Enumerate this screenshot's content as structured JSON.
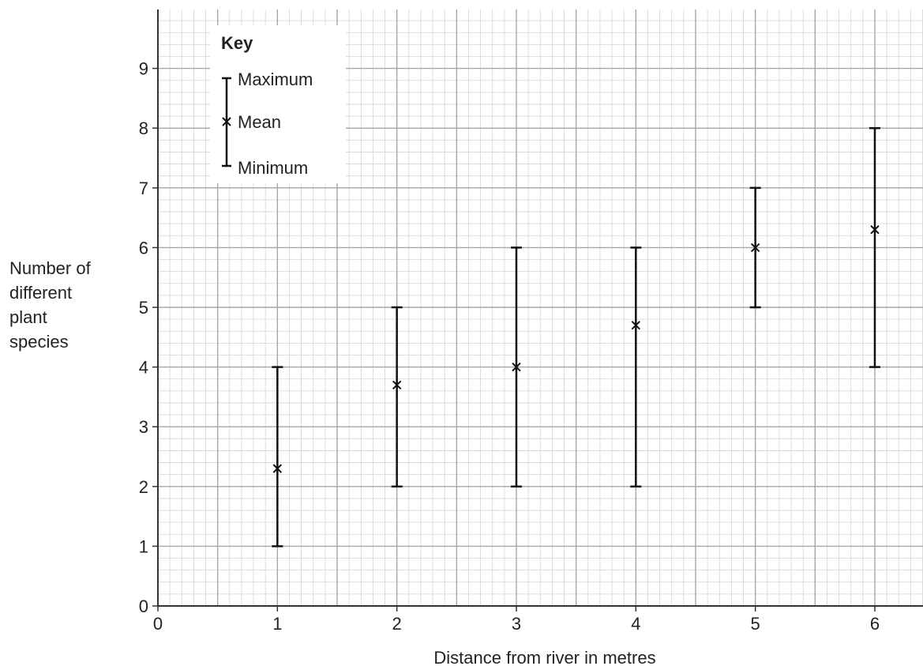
{
  "chart_data": {
    "type": "error-bar",
    "xlabel": "Distance from river in metres",
    "ylabel_lines": [
      "Number of",
      "different",
      "plant",
      "species"
    ],
    "xlim": [
      0,
      6.4
    ],
    "ylim": [
      0,
      9.9
    ],
    "x_ticks": [
      0,
      1,
      2,
      3,
      4,
      5,
      6
    ],
    "y_ticks": [
      0,
      1,
      2,
      3,
      4,
      5,
      6,
      7,
      8,
      9
    ],
    "grid": true,
    "legend": {
      "title": "Key",
      "placement": "top-left",
      "items": {
        "maximum": "Maximum",
        "mean": "Mean",
        "minimum": "Minimum"
      }
    },
    "points": [
      {
        "x": 1,
        "min": 1,
        "mean": 2.3,
        "max": 4
      },
      {
        "x": 2,
        "min": 2,
        "mean": 3.7,
        "max": 5
      },
      {
        "x": 3,
        "min": 2,
        "mean": 4,
        "max": 6
      },
      {
        "x": 4,
        "min": 2,
        "mean": 4.7,
        "max": 6
      },
      {
        "x": 5,
        "min": 5,
        "mean": 6,
        "max": 7
      },
      {
        "x": 6,
        "min": 4,
        "mean": 6.3,
        "max": 8
      }
    ]
  }
}
